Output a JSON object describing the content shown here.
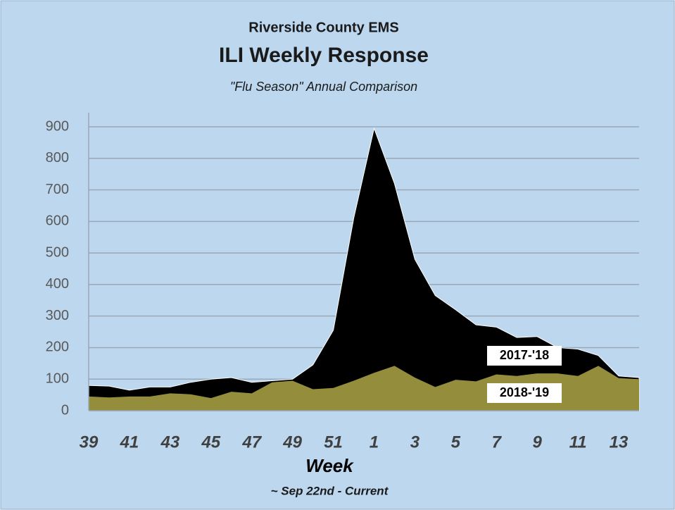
{
  "chart_data": {
    "type": "area",
    "title": "Riverside County EMS",
    "subtitle": "ILI Weekly Response",
    "annotation": "\"Flu Season\" Annual Comparison",
    "x_label": "Week",
    "footnote": "~ Sep 22nd  - Current",
    "categories": [
      "39",
      null,
      "41",
      null,
      "43",
      null,
      "45",
      null,
      "47",
      null,
      "49",
      null,
      "51",
      null,
      "1",
      null,
      "3",
      null,
      "5",
      null,
      "7",
      null,
      "9",
      null,
      "11",
      null,
      "13",
      null
    ],
    "series": [
      {
        "name": "2017-'18",
        "color": "#000000",
        "values": [
          80,
          78,
          65,
          75,
          75,
          90,
          100,
          105,
          90,
          95,
          100,
          145,
          255,
          610,
          895,
          720,
          480,
          365,
          320,
          272,
          265,
          232,
          235,
          200,
          195,
          175,
          110,
          105
        ]
      },
      {
        "name": "2018-'19",
        "color": "#948e3c",
        "values": [
          45,
          42,
          45,
          45,
          55,
          52,
          40,
          60,
          55,
          90,
          95,
          68,
          72,
          95,
          120,
          142,
          105,
          75,
          98,
          93,
          115,
          110,
          118,
          118,
          110,
          142,
          103,
          100
        ]
      }
    ],
    "ylim": [
      0,
      900
    ],
    "yticks": [
      0,
      100,
      200,
      300,
      400,
      500,
      600,
      700,
      800,
      900
    ],
    "grid": true
  }
}
